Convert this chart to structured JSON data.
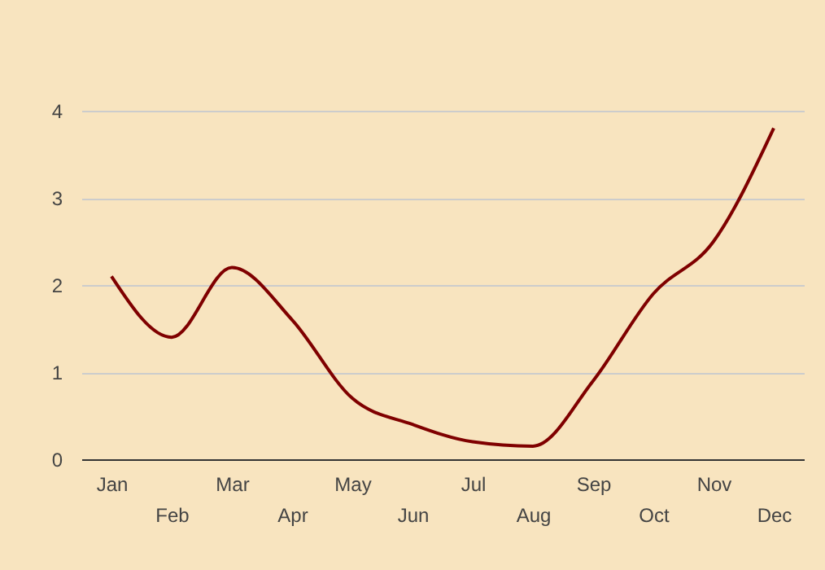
{
  "chart_data": {
    "type": "line",
    "categories": [
      "Jan",
      "Feb",
      "Mar",
      "Apr",
      "May",
      "Jun",
      "Jul",
      "Aug",
      "Sep",
      "Oct",
      "Nov",
      "Dec"
    ],
    "series": [
      {
        "color": "#7f0000",
        "values": [
          2.1,
          1.4,
          2.2,
          1.6,
          0.7,
          0.4,
          0.2,
          0.15,
          0.9,
          1.9,
          2.5,
          3.8
        ]
      }
    ],
    "ylim": [
      0,
      4
    ],
    "yticks": [
      0,
      1,
      2,
      3,
      4
    ],
    "grid": "y",
    "legend": false,
    "marker": "none",
    "line_style": "solid"
  }
}
